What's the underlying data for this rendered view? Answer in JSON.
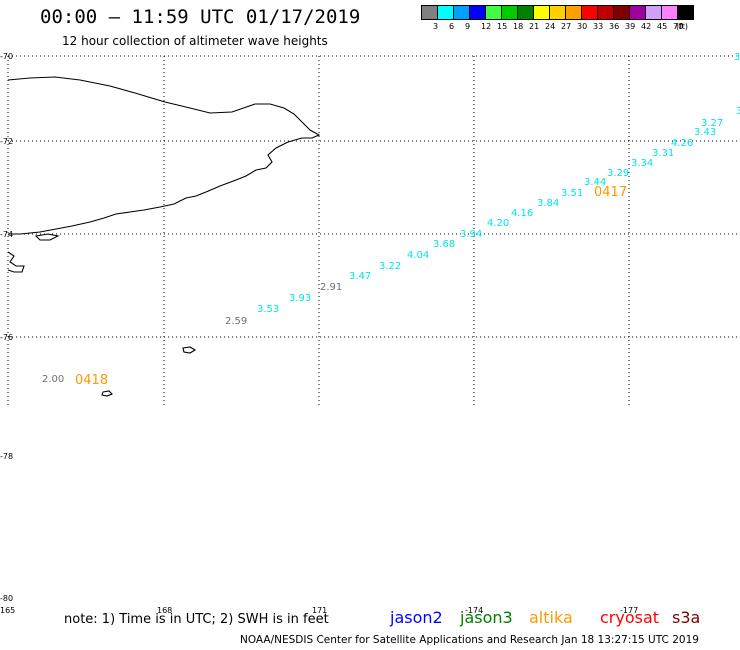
{
  "header": {
    "title": "00:00 – 11:59 UTC 01/17/2019",
    "subtitle": "12 hour collection of altimeter wave heights"
  },
  "scale": {
    "unit_label": "(ft)",
    "bins": [
      {
        "label": "3",
        "color": "#808080"
      },
      {
        "label": "6",
        "color": "#00ffff"
      },
      {
        "label": "9",
        "color": "#00a0ff"
      },
      {
        "label": "12",
        "color": "#0000ff"
      },
      {
        "label": "15",
        "color": "#40ff40"
      },
      {
        "label": "18",
        "color": "#00cc00"
      },
      {
        "label": "21",
        "color": "#008000"
      },
      {
        "label": "24",
        "color": "#ffff00"
      },
      {
        "label": "27",
        "color": "#ffd000"
      },
      {
        "label": "30",
        "color": "#ffa000"
      },
      {
        "label": "33",
        "color": "#ff0000"
      },
      {
        "label": "36",
        "color": "#c00000"
      },
      {
        "label": "39",
        "color": "#800000"
      },
      {
        "label": "42",
        "color": "#a000a0"
      },
      {
        "label": "45",
        "color": "#d0a0ff"
      },
      {
        "label": "70",
        "color": "#ff80ff"
      },
      {
        "label": "",
        "color": "#000000"
      }
    ]
  },
  "axes": {
    "lat_labels": [
      "-70",
      "-72",
      "-74",
      "-76",
      "-78",
      "-80"
    ],
    "lon_labels": [
      "165",
      "168",
      "171",
      "-174",
      "-177"
    ]
  },
  "chart_data": {
    "type": "scatter",
    "title": "00:00 – 11:59 UTC 01/17/2019",
    "subtitle": "12 hour collection of altimeter wave heights",
    "unit": "ft",
    "track": [
      {
        "label": "3.",
        "color": "#00e5e5"
      },
      {
        "label": "3",
        "color": "#00e5e5"
      },
      {
        "label": "3.27",
        "color": "#00e5e5"
      },
      {
        "label": "3.43",
        "color": "#00e5e5"
      },
      {
        "label": "4.26",
        "color": "#00e5e5"
      },
      {
        "label": "3.31",
        "color": "#00e5e5"
      },
      {
        "label": "3.34",
        "color": "#00e5e5"
      },
      {
        "label": "3.29",
        "color": "#00e5e5"
      },
      {
        "label": "3.44",
        "color": "#00e5e5"
      },
      {
        "label": "3.51",
        "color": "#00e5e5"
      },
      {
        "label": "3.84",
        "color": "#00e5e5"
      },
      {
        "label": "4.16",
        "color": "#00e5e5"
      },
      {
        "label": "4.20",
        "color": "#00e5e5"
      },
      {
        "label": "3.94",
        "color": "#00e5e5"
      },
      {
        "label": "3.68",
        "color": "#00e5e5"
      },
      {
        "label": "4.04",
        "color": "#00e5e5"
      },
      {
        "label": "3.22",
        "color": "#00e5e5"
      },
      {
        "label": "3.47",
        "color": "#00e5e5"
      },
      {
        "label": "2.91",
        "color": "#707070"
      },
      {
        "label": "3.93",
        "color": "#00e5e5"
      },
      {
        "label": "3.53",
        "color": "#00e5e5"
      },
      {
        "label": "2.59",
        "color": "#707070"
      },
      {
        "label": "2.00",
        "color": "#707070"
      }
    ],
    "time_marks": [
      {
        "label": "0417",
        "color": "#ff9900"
      },
      {
        "label": "0418",
        "color": "#ff9900"
      }
    ]
  },
  "footer": {
    "note": "note: 1) Time is in UTC; 2) SWH is in feet",
    "satellites": [
      {
        "name": "jason2",
        "color": "#0000ff"
      },
      {
        "name": "jason3",
        "color": "#008000"
      },
      {
        "name": "altika",
        "color": "#ff9900"
      },
      {
        "name": "cryosat",
        "color": "#ff0000"
      },
      {
        "name": "s3a",
        "color": "#800000"
      }
    ],
    "credit": "NOAA/NESDIS Center for Satellite Applications and Research    Jan 18 13:27:15 UTC 2019"
  }
}
